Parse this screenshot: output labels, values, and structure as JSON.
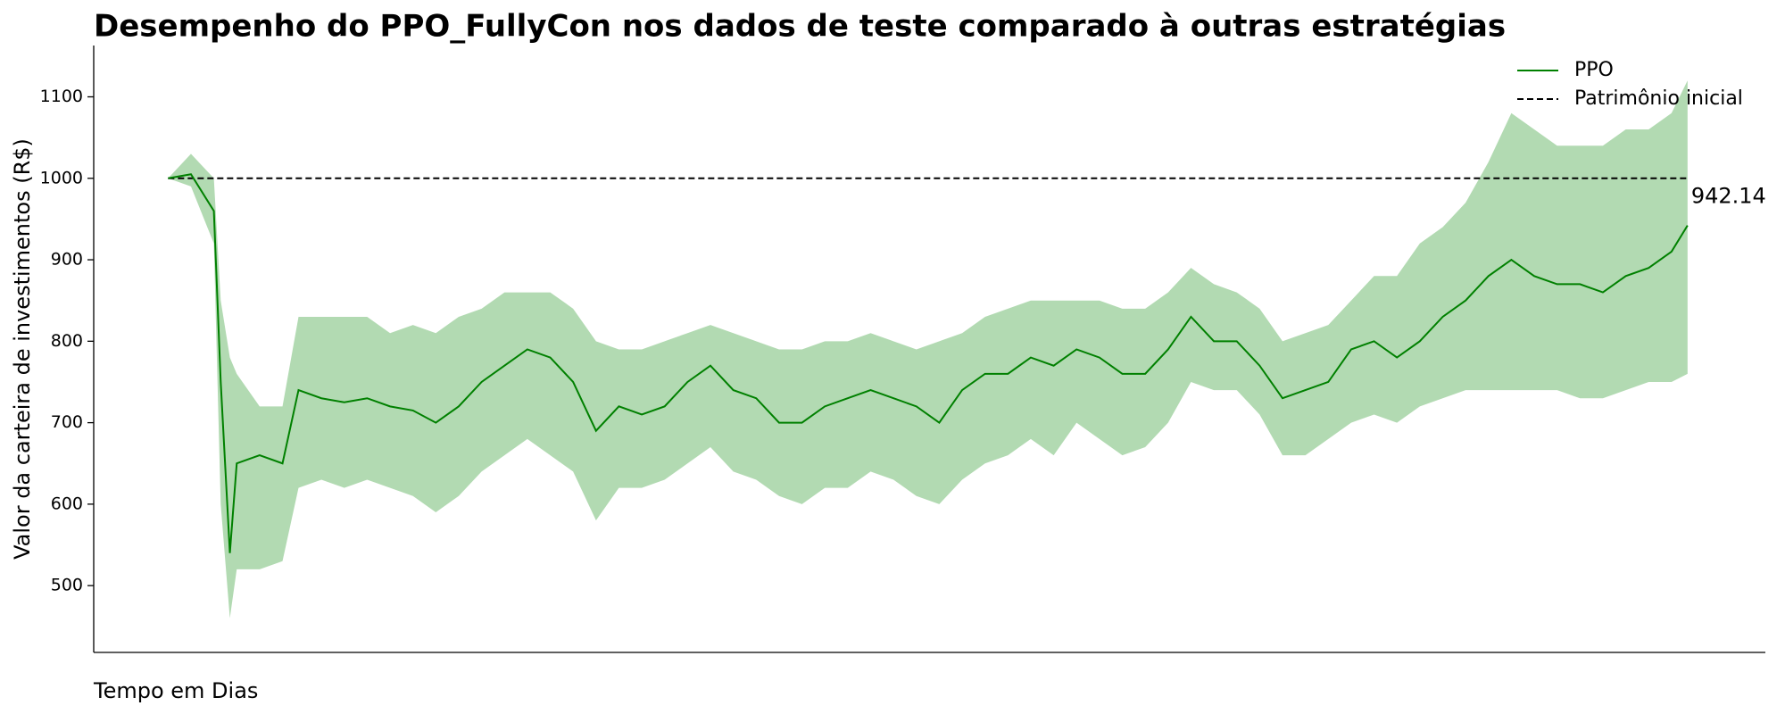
{
  "chart_data": {
    "type": "line",
    "title": "Desempenho do PPO_FullyCon nos dados de teste comparado à outras estratégias",
    "y_label": "Valor da carteira de investimentos (R$)",
    "x_label": "Tempo em Dias",
    "x": [
      0,
      10,
      20,
      23,
      27,
      30,
      40,
      50,
      57,
      67,
      77,
      87,
      97,
      107,
      117,
      127,
      137,
      147,
      157,
      167,
      177,
      187,
      197,
      207,
      217,
      227,
      237,
      247,
      257,
      267,
      277,
      287,
      297,
      307,
      317,
      327,
      337,
      347,
      357,
      367,
      377,
      387,
      397,
      407,
      417,
      427,
      437,
      447,
      457,
      467,
      477,
      487,
      497,
      507,
      517,
      527,
      537,
      547,
      557,
      567,
      577,
      587,
      597,
      607,
      617,
      627,
      637,
      647,
      657,
      664
    ],
    "series": [
      {
        "name": "PPO",
        "color": "#008000",
        "values": [
          1000,
          1005,
          960,
          750,
          540,
          650,
          660,
          650,
          740,
          730,
          725,
          730,
          720,
          715,
          700,
          720,
          750,
          770,
          790,
          780,
          750,
          690,
          720,
          710,
          720,
          750,
          770,
          740,
          730,
          700,
          700,
          720,
          730,
          740,
          730,
          720,
          700,
          740,
          760,
          760,
          780,
          770,
          790,
          780,
          760,
          760,
          790,
          830,
          800,
          800,
          770,
          730,
          740,
          750,
          790,
          800,
          780,
          800,
          830,
          850,
          880,
          900,
          880,
          870,
          870,
          860,
          880,
          890,
          910,
          942.14
        ]
      }
    ],
    "band": {
      "color": "#b2dab2",
      "lower": [
        1000,
        990,
        920,
        600,
        460,
        520,
        520,
        530,
        620,
        630,
        620,
        630,
        620,
        610,
        590,
        610,
        640,
        660,
        680,
        660,
        640,
        580,
        620,
        620,
        630,
        650,
        670,
        640,
        630,
        610,
        600,
        620,
        620,
        640,
        630,
        610,
        600,
        630,
        650,
        660,
        680,
        660,
        700,
        680,
        660,
        670,
        700,
        750,
        740,
        740,
        710,
        660,
        660,
        680,
        700,
        710,
        700,
        720,
        730,
        740,
        740,
        740,
        740,
        740,
        730,
        730,
        740,
        750,
        750,
        760
      ],
      "upper": [
        1000,
        1030,
        1000,
        850,
        780,
        760,
        720,
        720,
        830,
        830,
        830,
        830,
        810,
        820,
        810,
        830,
        840,
        860,
        860,
        860,
        840,
        800,
        790,
        790,
        800,
        810,
        820,
        810,
        800,
        790,
        790,
        800,
        800,
        810,
        800,
        790,
        800,
        810,
        830,
        840,
        850,
        850,
        850,
        850,
        840,
        840,
        860,
        890,
        870,
        860,
        840,
        800,
        810,
        820,
        850,
        880,
        880,
        920,
        940,
        970,
        1020,
        1080,
        1060,
        1040,
        1040,
        1040,
        1060,
        1060,
        1080,
        1120
      ]
    },
    "reference": {
      "name": "Patrimônio inicial",
      "value": 1000,
      "color": "#000000"
    },
    "xlim": [
      -32.5,
      698
    ],
    "ylim": [
      418,
      1163
    ],
    "yticks": [
      500,
      600,
      700,
      800,
      900,
      1000,
      1100
    ],
    "legend": "upper right"
  }
}
